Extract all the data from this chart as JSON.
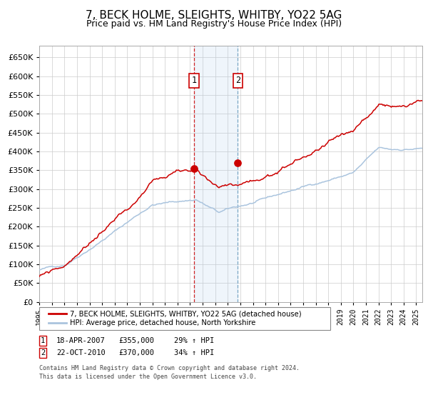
{
  "title": "7, BECK HOLME, SLEIGHTS, WHITBY, YO22 5AG",
  "subtitle": "Price paid vs. HM Land Registry's House Price Index (HPI)",
  "title_fontsize": 11,
  "subtitle_fontsize": 9,
  "hpi_color": "#aac4de",
  "price_color": "#cc0000",
  "point_color": "#cc0000",
  "bg_color": "#ffffff",
  "grid_color": "#cccccc",
  "sale1_date": 2007.3,
  "sale1_price": 355000,
  "sale1_label": "18-APR-2007",
  "sale1_hpi_pct": "29%",
  "sale2_date": 2010.8,
  "sale2_price": 370000,
  "sale2_label": "22-OCT-2010",
  "sale2_hpi_pct": "34%",
  "legend_line1": "7, BECK HOLME, SLEIGHTS, WHITBY, YO22 5AG (detached house)",
  "legend_line2": "HPI: Average price, detached house, North Yorkshire",
  "footer1": "Contains HM Land Registry data © Crown copyright and database right 2024.",
  "footer2": "This data is licensed under the Open Government Licence v3.0.",
  "ylim": [
    0,
    680000
  ],
  "yticks": [
    0,
    50000,
    100000,
    150000,
    200000,
    250000,
    300000,
    350000,
    400000,
    450000,
    500000,
    550000,
    600000,
    650000
  ],
  "xmin": 1995.0,
  "xmax": 2025.5
}
